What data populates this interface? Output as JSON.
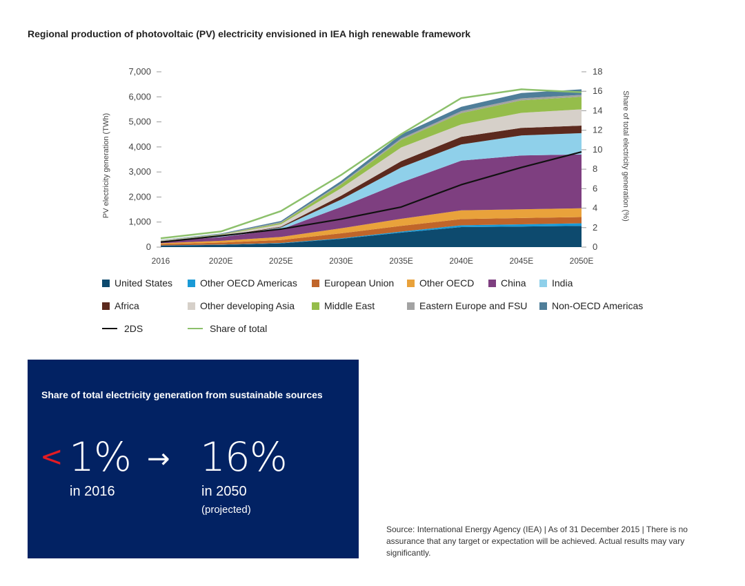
{
  "page": {
    "title": "Regional production of photovoltaic (PV) electricity envisioned in IEA high renewable framework"
  },
  "chart_data": {
    "type": "area",
    "stacked": true,
    "title": "Regional production of photovoltaic (PV) electricity envisioned in IEA high renewable framework",
    "xlabel": "",
    "ylabel": "PV electricity generation (TWh)",
    "y2label": "Share of total electricity generation (%)",
    "x": [
      "2016",
      "2020E",
      "2025E",
      "2030E",
      "2035E",
      "2040E",
      "2045E",
      "2050E"
    ],
    "ylim": [
      0,
      7000
    ],
    "y_ticks": [
      "0",
      "1,000",
      "2,000",
      "3,000",
      "4,000",
      "5,000",
      "6,000",
      "7,000"
    ],
    "y2lim": [
      0,
      18
    ],
    "y2_ticks": [
      "0",
      "2",
      "4",
      "6",
      "8",
      "10",
      "12",
      "14",
      "16",
      "18"
    ],
    "grid": false,
    "legend_position": "bottom",
    "series": [
      {
        "name": "United States",
        "color": "#0d4a6e",
        "values": [
          60,
          90,
          150,
          330,
          580,
          800,
          820,
          850
        ]
      },
      {
        "name": "Other OECD Americas",
        "color": "#1a9ad6",
        "values": [
          5,
          10,
          15,
          20,
          40,
          70,
          90,
          100
        ]
      },
      {
        "name": "European Union",
        "color": "#c0652a",
        "values": [
          50,
          80,
          120,
          200,
          230,
          250,
          250,
          250
        ]
      },
      {
        "name": "Other OECD",
        "color": "#e9a23b",
        "values": [
          40,
          70,
          120,
          200,
          280,
          350,
          350,
          350
        ]
      },
      {
        "name": "China",
        "color": "#7e3f80",
        "values": [
          70,
          150,
          300,
          850,
          1450,
          1980,
          2150,
          2150
        ]
      },
      {
        "name": "India",
        "color": "#8fd0ea",
        "values": [
          10,
          30,
          80,
          300,
          600,
          650,
          800,
          850
        ]
      },
      {
        "name": "Africa",
        "color": "#5c2a1e",
        "values": [
          5,
          10,
          30,
          150,
          250,
          300,
          300,
          300
        ]
      },
      {
        "name": "Other developing Asia",
        "color": "#d6d0c9",
        "values": [
          20,
          40,
          100,
          300,
          550,
          500,
          600,
          650
        ]
      },
      {
        "name": "Middle East",
        "color": "#95bd4b",
        "values": [
          5,
          20,
          50,
          150,
          300,
          450,
          500,
          500
        ]
      },
      {
        "name": "Eastern Europe and FSU",
        "color": "#a3a3a3",
        "values": [
          10,
          20,
          30,
          40,
          60,
          80,
          80,
          80
        ]
      },
      {
        "name": "Non-OECD Americas",
        "color": "#4f7e99",
        "values": [
          5,
          20,
          50,
          100,
          160,
          170,
          210,
          220
        ]
      }
    ],
    "lines": [
      {
        "name": "2DS",
        "color": "#111111",
        "axis": "left",
        "values": [
          200,
          450,
          720,
          1120,
          1600,
          2490,
          3180,
          3800
        ]
      },
      {
        "name": "Share of total",
        "color": "#8cc06b",
        "axis": "right",
        "values": [
          0.9,
          1.6,
          3.7,
          7.4,
          11.6,
          15.3,
          16.2,
          15.9
        ]
      }
    ]
  },
  "infobox": {
    "title": "Share of total electricity generation from sustainable sources",
    "lt_symbol": "<",
    "from_value": "1%",
    "arrow": "→",
    "to_value": "16%",
    "from_year": "in 2016",
    "to_year": "in 2050",
    "projected": "(projected)",
    "bg_color": "#022263",
    "accent_color": "#e31b23"
  },
  "source": "Source: International Energy Agency (IEA) | As of 31 December 2015 | There is no assurance that any target or expectation will be achieved. Actual results may vary significantly."
}
